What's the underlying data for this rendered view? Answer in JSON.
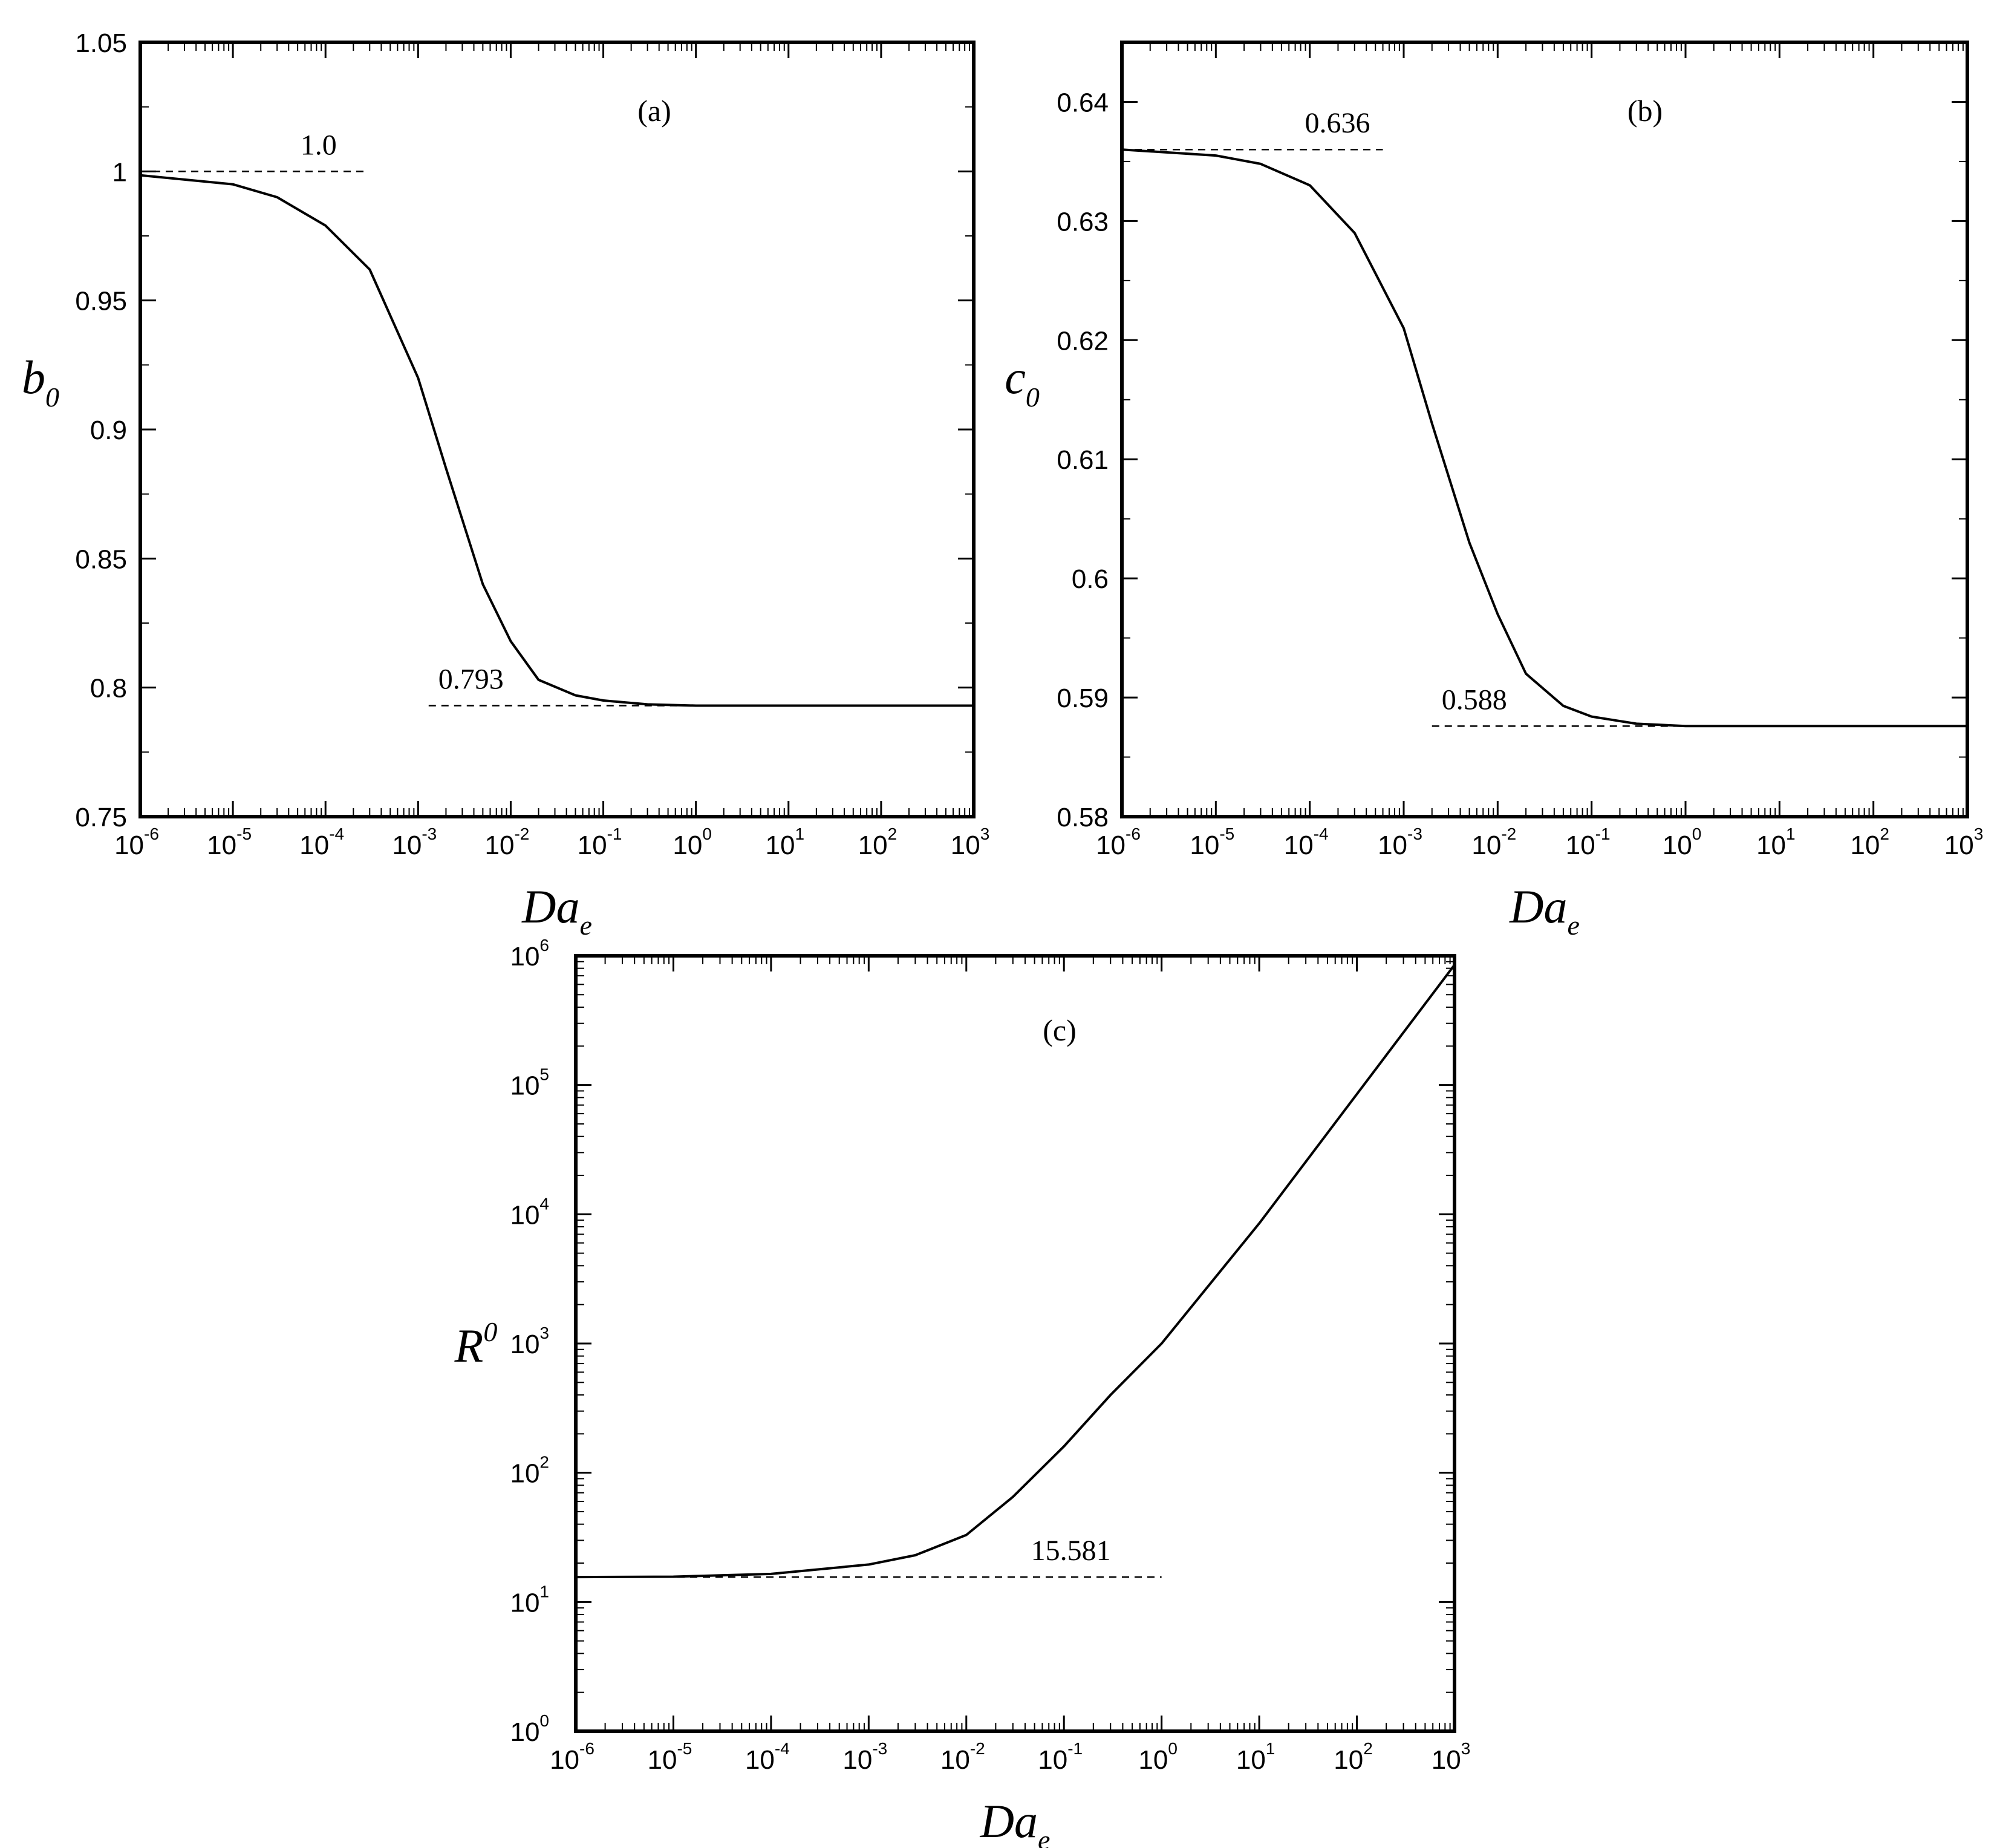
{
  "chart_data": [
    {
      "panel": "a",
      "panel_label": "(a)",
      "type": "line",
      "xscale": "log",
      "xlim": [
        1e-06,
        1000
      ],
      "x_ticks": [
        {
          "base": "10",
          "exp": "-6"
        },
        {
          "base": "10",
          "exp": "-5"
        },
        {
          "base": "10",
          "exp": "-4"
        },
        {
          "base": "10",
          "exp": "-3"
        },
        {
          "base": "10",
          "exp": "-2"
        },
        {
          "base": "10",
          "exp": "-1"
        },
        {
          "base": "10",
          "exp": "0"
        },
        {
          "base": "10",
          "exp": "1"
        },
        {
          "base": "10",
          "exp": "2"
        },
        {
          "base": "10",
          "exp": "3"
        }
      ],
      "ylim": [
        0.75,
        1.05
      ],
      "y_ticks": [
        "0.75",
        "0.8",
        "0.85",
        "0.9",
        "0.95",
        "1",
        "1.05"
      ],
      "xlabel": {
        "main": "Da",
        "sub": "e"
      },
      "ylabel": {
        "main": "b",
        "sub": "0"
      },
      "grid": false,
      "series": [
        {
          "style": "solid",
          "x": [
            1e-06,
            1e-05,
            3e-05,
            0.0001,
            0.0003,
            0.001,
            0.002,
            0.005,
            0.01,
            0.02,
            0.05,
            0.1,
            0.3,
            1,
            10,
            100,
            1000
          ],
          "y": [
            0.9985,
            0.995,
            0.99,
            0.979,
            0.962,
            0.92,
            0.885,
            0.84,
            0.818,
            0.803,
            0.797,
            0.795,
            0.7935,
            0.793,
            0.793,
            0.793,
            0.793
          ]
        }
      ],
      "asymptotes": [
        {
          "label": "1.0",
          "y": 1.0,
          "x_from": 1e-06,
          "x_to": 0.00026
        },
        {
          "label": "0.793",
          "y": 0.793,
          "x_from": 0.0013,
          "x_to": 1000
        }
      ]
    },
    {
      "panel": "b",
      "panel_label": "(b)",
      "type": "line",
      "xscale": "log",
      "xlim": [
        1e-06,
        1000
      ],
      "x_ticks": [
        {
          "base": "10",
          "exp": "-6"
        },
        {
          "base": "10",
          "exp": "-5"
        },
        {
          "base": "10",
          "exp": "-4"
        },
        {
          "base": "10",
          "exp": "-3"
        },
        {
          "base": "10",
          "exp": "-2"
        },
        {
          "base": "10",
          "exp": "-1"
        },
        {
          "base": "10",
          "exp": "0"
        },
        {
          "base": "10",
          "exp": "1"
        },
        {
          "base": "10",
          "exp": "2"
        },
        {
          "base": "10",
          "exp": "3"
        }
      ],
      "ylim": [
        0.58,
        0.645
      ],
      "y_ticks": [
        "0.58",
        "0.59",
        "0.6",
        "0.61",
        "0.62",
        "0.63",
        "0.64"
      ],
      "xlabel": {
        "main": "Da",
        "sub": "e"
      },
      "ylabel": {
        "main": "c",
        "sub": "0"
      },
      "grid": false,
      "series": [
        {
          "style": "solid",
          "x": [
            1e-06,
            1e-05,
            3e-05,
            0.0001,
            0.0003,
            0.001,
            0.002,
            0.005,
            0.01,
            0.02,
            0.05,
            0.1,
            0.3,
            1,
            10,
            100,
            1000
          ],
          "y": [
            0.636,
            0.6355,
            0.6348,
            0.633,
            0.629,
            0.621,
            0.613,
            0.603,
            0.597,
            0.592,
            0.5893,
            0.5884,
            0.5878,
            0.5876,
            0.5876,
            0.5876,
            0.5876
          ]
        }
      ],
      "asymptotes": [
        {
          "label": "0.636",
          "y": 0.636,
          "x_from": 1e-06,
          "x_to": 0.0006
        },
        {
          "label": "0.588",
          "y": 0.5876,
          "x_from": 0.002,
          "x_to": 1000
        }
      ]
    },
    {
      "panel": "c",
      "panel_label": "(c)",
      "type": "line",
      "xscale": "log",
      "yscale": "log",
      "xlim": [
        1e-06,
        1000
      ],
      "x_ticks": [
        {
          "base": "10",
          "exp": "-6"
        },
        {
          "base": "10",
          "exp": "-5"
        },
        {
          "base": "10",
          "exp": "-4"
        },
        {
          "base": "10",
          "exp": "-3"
        },
        {
          "base": "10",
          "exp": "-2"
        },
        {
          "base": "10",
          "exp": "-1"
        },
        {
          "base": "10",
          "exp": "0"
        },
        {
          "base": "10",
          "exp": "1"
        },
        {
          "base": "10",
          "exp": "2"
        },
        {
          "base": "10",
          "exp": "3"
        }
      ],
      "ylim": [
        1,
        1000000
      ],
      "y_ticks": [
        {
          "base": "10",
          "exp": "0"
        },
        {
          "base": "10",
          "exp": "1"
        },
        {
          "base": "10",
          "exp": "2"
        },
        {
          "base": "10",
          "exp": "3"
        },
        {
          "base": "10",
          "exp": "4"
        },
        {
          "base": "10",
          "exp": "5"
        },
        {
          "base": "10",
          "exp": "6"
        }
      ],
      "xlabel": {
        "main": "Da",
        "sub": "e"
      },
      "ylabel": {
        "main": "R",
        "sup": "0"
      },
      "grid": false,
      "series": [
        {
          "style": "solid",
          "x": [
            1e-06,
            1e-05,
            0.0001,
            0.001,
            0.003,
            0.01,
            0.03,
            0.1,
            0.3,
            1,
            10,
            100,
            1000
          ],
          "y": [
            15.6,
            15.7,
            16.5,
            19.5,
            23,
            33,
            65,
            160,
            400,
            1000,
            8500,
            85000,
            850000
          ]
        }
      ],
      "asymptotes": [
        {
          "label": "15.581",
          "y": 15.581,
          "x_from": 1e-06,
          "x_to": 1
        }
      ]
    }
  ]
}
